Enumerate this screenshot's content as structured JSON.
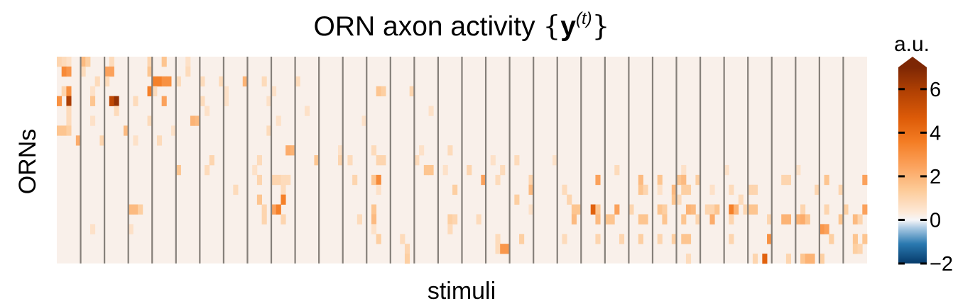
{
  "chart_data": {
    "type": "heatmap",
    "title": {
      "main": "ORN axon activity ",
      "open_brace": "{",
      "symbol": "y",
      "superscript": "(t)",
      "close_brace": "}"
    },
    "xlabel": "stimuli",
    "ylabel": "ORNs",
    "rows": 21,
    "group_count": 34,
    "columns_per_group": 5,
    "background_value": 0.15,
    "colorbar": {
      "label": "a.u.",
      "vmin": -2,
      "vmax": 7,
      "ticks": [
        {
          "value": -2,
          "label": "−2"
        },
        {
          "value": 0,
          "label": "0"
        },
        {
          "value": 2,
          "label": "2"
        },
        {
          "value": 4,
          "label": "4"
        },
        {
          "value": 6,
          "label": "6"
        }
      ],
      "extend": "max"
    },
    "cells": [
      [
        0,
        0,
        0,
        1.0
      ],
      [
        0,
        0,
        1,
        0.8
      ],
      [
        0,
        0,
        2,
        0.6
      ],
      [
        0,
        1,
        0,
        1.8
      ],
      [
        0,
        1,
        1,
        1.2
      ],
      [
        0,
        2,
        1,
        0.8
      ],
      [
        0,
        3,
        4,
        1.0
      ],
      [
        0,
        4,
        2,
        1.5
      ],
      [
        0,
        5,
        2,
        0.6
      ],
      [
        1,
        0,
        1,
        3.2
      ],
      [
        1,
        0,
        2,
        2.8
      ],
      [
        1,
        1,
        0,
        0.8
      ],
      [
        1,
        2,
        0,
        2.5
      ],
      [
        1,
        2,
        1,
        2.5
      ],
      [
        1,
        3,
        4,
        1.5
      ],
      [
        1,
        5,
        2,
        0.8
      ],
      [
        2,
        1,
        3,
        0.8
      ],
      [
        2,
        2,
        0,
        0.8
      ],
      [
        2,
        4,
        0,
        3.5
      ],
      [
        2,
        4,
        1,
        3.5
      ],
      [
        2,
        4,
        2,
        3.0
      ],
      [
        2,
        4,
        3,
        3.0
      ],
      [
        2,
        5,
        0,
        0.8
      ],
      [
        2,
        6,
        0,
        0.8
      ],
      [
        2,
        6,
        4,
        0.8
      ],
      [
        2,
        7,
        4,
        2.0
      ],
      [
        2,
        8,
        3,
        0.8
      ],
      [
        2,
        10,
        0,
        0.8
      ],
      [
        3,
        0,
        1,
        1.0
      ],
      [
        3,
        0,
        2,
        3.0
      ],
      [
        3,
        1,
        2,
        0.6
      ],
      [
        3,
        3,
        4,
        3.5
      ],
      [
        3,
        4,
        0,
        0.8
      ],
      [
        3,
        7,
        0,
        0.6
      ],
      [
        3,
        9,
        0,
        0.6
      ],
      [
        3,
        13,
        2,
        1.5
      ],
      [
        3,
        13,
        3,
        1.2
      ],
      [
        3,
        14,
        4,
        1.0
      ],
      [
        4,
        0,
        0,
        3.0
      ],
      [
        4,
        0,
        2,
        6.0
      ],
      [
        4,
        1,
        2,
        1.5
      ],
      [
        4,
        2,
        1,
        5.5
      ],
      [
        4,
        2,
        2,
        6.5
      ],
      [
        4,
        3,
        1,
        0.8
      ],
      [
        4,
        4,
        2,
        2.5
      ],
      [
        4,
        6,
        0,
        0.8
      ],
      [
        4,
        7,
        0,
        0.6
      ],
      [
        4,
        8,
        4,
        0.6
      ],
      [
        5,
        0,
        2,
        0.8
      ],
      [
        5,
        2,
        2,
        0.8
      ],
      [
        5,
        6,
        1,
        0.6
      ],
      [
        5,
        10,
        2,
        0.6
      ],
      [
        5,
        15,
        3,
        0.6
      ],
      [
        6,
        0,
        2,
        0.8
      ],
      [
        6,
        1,
        2,
        0.6
      ],
      [
        6,
        3,
        4,
        0.8
      ],
      [
        6,
        5,
        3,
        2.0
      ],
      [
        6,
        5,
        4,
        1.8
      ],
      [
        6,
        9,
        1,
        0.6
      ],
      [
        6,
        12,
        4,
        0.6
      ],
      [
        7,
        0,
        0,
        1.5
      ],
      [
        7,
        0,
        1,
        1.5
      ],
      [
        7,
        0,
        2,
        1.2
      ],
      [
        7,
        2,
        4,
        1.8
      ],
      [
        7,
        4,
        4,
        0.6
      ],
      [
        7,
        8,
        4,
        0.8
      ],
      [
        8,
        0,
        4,
        2.2
      ],
      [
        8,
        1,
        4,
        1.0
      ],
      [
        8,
        3,
        1,
        0.6
      ],
      [
        8,
        4,
        1,
        0.8
      ],
      [
        9,
        9,
        3,
        2.2
      ],
      [
        9,
        9,
        4,
        2.0
      ],
      [
        9,
        11,
        4,
        0.6
      ],
      [
        9,
        13,
        1,
        0.8
      ],
      [
        9,
        15,
        1,
        0.6
      ],
      [
        9,
        16,
        2,
        0.8
      ],
      [
        10,
        6,
        2,
        1.0
      ],
      [
        10,
        8,
        2,
        0.8
      ],
      [
        10,
        10,
        4,
        1.5
      ],
      [
        10,
        11,
        4,
        1.0
      ],
      [
        10,
        12,
        1,
        0.8
      ],
      [
        10,
        13,
        2,
        1.0
      ],
      [
        10,
        13,
        3,
        1.0
      ],
      [
        10,
        15,
        0,
        0.8
      ],
      [
        10,
        18,
        1,
        0.6
      ],
      [
        10,
        19,
        1,
        0.8
      ],
      [
        10,
        20,
        4,
        0.6
      ],
      [
        11,
        5,
        0,
        1.5
      ],
      [
        11,
        6,
        1,
        0.8
      ],
      [
        11,
        8,
        1,
        0.6
      ],
      [
        11,
        15,
        2,
        1.5
      ],
      [
        11,
        15,
        3,
        1.5
      ],
      [
        11,
        16,
        1,
        0.6
      ],
      [
        11,
        17,
        1,
        1.0
      ],
      [
        11,
        18,
        3,
        0.8
      ],
      [
        11,
        23,
        2,
        0.8
      ],
      [
        11,
        26,
        1,
        0.6
      ],
      [
        11,
        28,
        0,
        0.6
      ],
      [
        11,
        31,
        0,
        0.6
      ],
      [
        12,
        8,
        2,
        1.0
      ],
      [
        12,
        9,
        0,
        1.0
      ],
      [
        12,
        9,
        1,
        1.0
      ],
      [
        12,
        9,
        2,
        0.8
      ],
      [
        12,
        9,
        3,
        0.8
      ],
      [
        12,
        12,
        2,
        1.0
      ],
      [
        12,
        13,
        1,
        1.5
      ],
      [
        12,
        13,
        2,
        3.2
      ],
      [
        12,
        17,
        4,
        2.5
      ],
      [
        12,
        18,
        2,
        0.8
      ],
      [
        12,
        19,
        4,
        1.0
      ],
      [
        12,
        22,
        3,
        2.5
      ],
      [
        12,
        24,
        2,
        1.8
      ],
      [
        12,
        25,
        1,
        1.5
      ],
      [
        12,
        26,
        0,
        1.5
      ],
      [
        12,
        26,
        1,
        1.8
      ],
      [
        12,
        26,
        4,
        1.2
      ],
      [
        12,
        30,
        2,
        1.0
      ],
      [
        12,
        30,
        3,
        1.0
      ],
      [
        12,
        32,
        1,
        1.5
      ],
      [
        12,
        33,
        4,
        2.5
      ],
      [
        13,
        7,
        2,
        0.8
      ],
      [
        13,
        9,
        2,
        0.8
      ],
      [
        13,
        13,
        2,
        0.6
      ],
      [
        13,
        16,
        3,
        1.2
      ],
      [
        13,
        19,
        4,
        1.8
      ],
      [
        13,
        21,
        1,
        0.8
      ],
      [
        13,
        24,
        2,
        1.5
      ],
      [
        13,
        24,
        3,
        1.0
      ],
      [
        13,
        25,
        1,
        0.6
      ],
      [
        13,
        25,
        4,
        1.8
      ],
      [
        13,
        26,
        1,
        1.2
      ],
      [
        13,
        26,
        2,
        1.2
      ],
      [
        13,
        27,
        2,
        0.6
      ],
      [
        13,
        28,
        1,
        0.8
      ],
      [
        13,
        29,
        0,
        1.0
      ],
      [
        13,
        29,
        1,
        1.0
      ],
      [
        13,
        31,
        4,
        1.0
      ],
      [
        13,
        32,
        4,
        1.0
      ],
      [
        14,
        8,
        2,
        1.5
      ],
      [
        14,
        9,
        2,
        3.5
      ],
      [
        14,
        19,
        1,
        1.2
      ],
      [
        14,
        21,
        2,
        1.0
      ],
      [
        14,
        25,
        4,
        1.5
      ],
      [
        14,
        26,
        0,
        0.8
      ],
      [
        14,
        28,
        3,
        0.8
      ],
      [
        15,
        3,
        0,
        1.8
      ],
      [
        15,
        3,
        1,
        1.8
      ],
      [
        15,
        3,
        2,
        1.2
      ],
      [
        15,
        8,
        3,
        1.0
      ],
      [
        15,
        9,
        0,
        2.5
      ],
      [
        15,
        9,
        1,
        3.5
      ],
      [
        15,
        13,
        1,
        1.5
      ],
      [
        15,
        19,
        4,
        0.6
      ],
      [
        15,
        21,
        3,
        1.5
      ],
      [
        15,
        21,
        4,
        1.5
      ],
      [
        15,
        22,
        2,
        4.5
      ],
      [
        15,
        22,
        3,
        1.5
      ],
      [
        15,
        23,
        2,
        2.5
      ],
      [
        15,
        24,
        0,
        1.0
      ],
      [
        15,
        25,
        1,
        1.5
      ],
      [
        15,
        25,
        2,
        1.2
      ],
      [
        15,
        26,
        2,
        2.0
      ],
      [
        15,
        26,
        3,
        1.8
      ],
      [
        15,
        27,
        1,
        1.0
      ],
      [
        15,
        27,
        2,
        1.0
      ],
      [
        15,
        27,
        3,
        1.5
      ],
      [
        15,
        28,
        1,
        3.5
      ],
      [
        15,
        28,
        2,
        2.0
      ],
      [
        15,
        28,
        4,
        1.0
      ],
      [
        15,
        29,
        0,
        1.5
      ],
      [
        15,
        29,
        1,
        1.5
      ],
      [
        15,
        31,
        1,
        1.0
      ],
      [
        15,
        32,
        1,
        1.0
      ],
      [
        15,
        33,
        0,
        1.2
      ],
      [
        15,
        33,
        4,
        2.5
      ],
      [
        16,
        8,
        3,
        1.0
      ],
      [
        16,
        9,
        2,
        1.0
      ],
      [
        16,
        12,
        3,
        0.8
      ],
      [
        16,
        13,
        1,
        1.8
      ],
      [
        16,
        16,
        2,
        1.2
      ],
      [
        16,
        16,
        3,
        1.0
      ],
      [
        16,
        17,
        3,
        0.8
      ],
      [
        16,
        21,
        3,
        1.8
      ],
      [
        16,
        22,
        3,
        1.8
      ],
      [
        16,
        23,
        0,
        1.5
      ],
      [
        16,
        23,
        1,
        1.5
      ],
      [
        16,
        24,
        2,
        1.5
      ],
      [
        16,
        24,
        3,
        1.5
      ],
      [
        16,
        25,
        2,
        1.5
      ],
      [
        16,
        26,
        1,
        1.5
      ],
      [
        16,
        26,
        4,
        1.0
      ],
      [
        16,
        27,
        2,
        2.2
      ],
      [
        16,
        28,
        1,
        1.0
      ],
      [
        16,
        29,
        4,
        1.0
      ],
      [
        16,
        30,
        2,
        2.0
      ],
      [
        16,
        30,
        3,
        2.0
      ],
      [
        16,
        31,
        0,
        2.0
      ],
      [
        16,
        31,
        1,
        2.2
      ],
      [
        16,
        31,
        2,
        1.5
      ],
      [
        16,
        32,
        4,
        1.5
      ],
      [
        16,
        33,
        2,
        1.8
      ],
      [
        16,
        33,
        3,
        1.0
      ],
      [
        17,
        1,
        2,
        0.6
      ],
      [
        17,
        3,
        0,
        0.6
      ],
      [
        17,
        13,
        1,
        0.6
      ],
      [
        17,
        16,
        2,
        0.8
      ],
      [
        17,
        32,
        0,
        2.8
      ],
      [
        17,
        32,
        1,
        2.5
      ],
      [
        18,
        13,
        2,
        1.2
      ],
      [
        18,
        14,
        2,
        0.8
      ],
      [
        18,
        18,
        2,
        0.8
      ],
      [
        18,
        19,
        2,
        1.2
      ],
      [
        18,
        21,
        1,
        0.8
      ],
      [
        18,
        22,
        3,
        1.0
      ],
      [
        18,
        23,
        3,
        1.0
      ],
      [
        18,
        24,
        2,
        1.2
      ],
      [
        18,
        25,
        1,
        1.0
      ],
      [
        18,
        25,
        4,
        1.2
      ],
      [
        18,
        26,
        1,
        1.5
      ],
      [
        18,
        26,
        2,
        1.5
      ],
      [
        18,
        28,
        1,
        1.0
      ],
      [
        18,
        29,
        4,
        3.0
      ],
      [
        18,
        32,
        2,
        1.2
      ],
      [
        18,
        33,
        2,
        1.5
      ],
      [
        18,
        33,
        4,
        1.5
      ],
      [
        19,
        14,
        3,
        1.0
      ],
      [
        19,
        18,
        2,
        0.8
      ],
      [
        19,
        18,
        3,
        2.8
      ],
      [
        19,
        18,
        4,
        2.8
      ],
      [
        19,
        33,
        2,
        1.2
      ],
      [
        19,
        33,
        3,
        1.0
      ],
      [
        20,
        14,
        3,
        1.2
      ],
      [
        20,
        26,
        2,
        0.8
      ],
      [
        20,
        29,
        1,
        1.0
      ],
      [
        20,
        29,
        3,
        4.5
      ],
      [
        20,
        30,
        3,
        1.0
      ],
      [
        20,
        31,
        1,
        1.5
      ],
      [
        20,
        31,
        2,
        2.0
      ],
      [
        20,
        31,
        3,
        2.0
      ],
      [
        20,
        32,
        0,
        1.2
      ]
    ]
  }
}
